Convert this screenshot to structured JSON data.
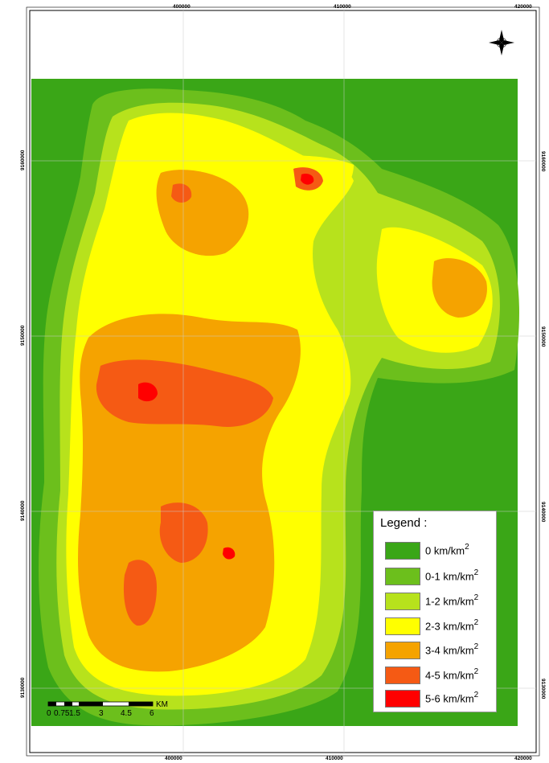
{
  "map": {
    "x_ticks": [
      "400000",
      "410000",
      "420000"
    ],
    "y_ticks": [
      "9160000",
      "9150000",
      "9140000",
      "9130000"
    ],
    "background_color": "#3aa617"
  },
  "legend": {
    "title": "Legend :",
    "items": [
      {
        "label": "0 km/km",
        "sup": "2",
        "color": "#3aa617"
      },
      {
        "label": "0-1 km/km",
        "sup": "2",
        "color": "#6cbf1c"
      },
      {
        "label": "1-2 km/km",
        "sup": "2",
        "color": "#b7e21c"
      },
      {
        "label": "2-3 km/km",
        "sup": "2",
        "color": "#ffff00"
      },
      {
        "label": "3-4 km/km",
        "sup": "2",
        "color": "#f5a300"
      },
      {
        "label": "4-5 km/km",
        "sup": "2",
        "color": "#f55a14"
      },
      {
        "label": "5-6 km/km",
        "sup": "2",
        "color": "#ff0000"
      }
    ]
  },
  "scalebar": {
    "labels": [
      "0",
      "0.75",
      "1.5",
      "3",
      "4.5",
      "6"
    ],
    "unit": "KM"
  },
  "north_arrow": {
    "icon": "compass-rose-icon"
  }
}
